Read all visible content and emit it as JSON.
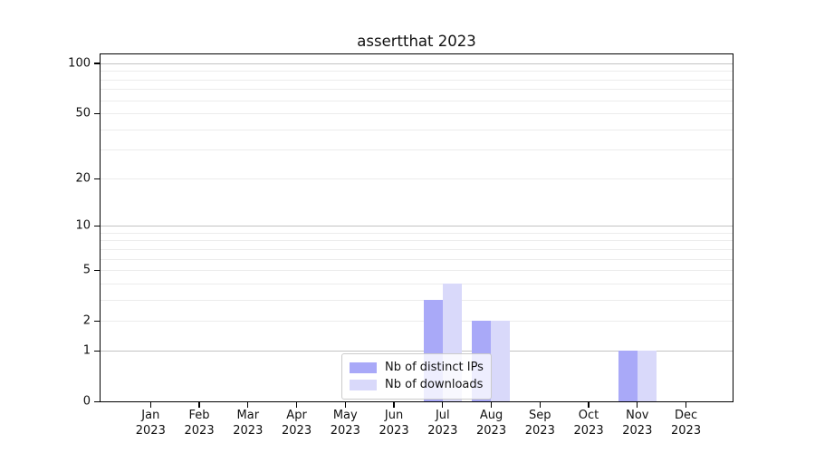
{
  "chart_data": {
    "type": "bar",
    "title": "assertthat 2023",
    "x_categories": [
      "Jan",
      "Feb",
      "Mar",
      "Apr",
      "May",
      "Jun",
      "Jul",
      "Aug",
      "Sep",
      "Oct",
      "Nov",
      "Dec"
    ],
    "x_year": "2023",
    "series": [
      {
        "name": "Nb of distinct IPs",
        "color": "#a9a9f8",
        "values": [
          0,
          0,
          0,
          0,
          0,
          0,
          3,
          2,
          0,
          0,
          1,
          0
        ]
      },
      {
        "name": "Nb of downloads",
        "color": "#d9d9fa",
        "values": [
          0,
          0,
          0,
          0,
          0,
          0,
          4,
          2,
          0,
          0,
          1,
          0
        ]
      }
    ],
    "y_ticks": [
      100,
      50,
      20,
      10,
      5,
      2,
      1,
      0
    ],
    "y_minor_gridlines": [
      2,
      3,
      4,
      5,
      6,
      7,
      8,
      9,
      20,
      30,
      40,
      50,
      60,
      70,
      80,
      90
    ],
    "y_major_gridlines": [
      1,
      10,
      100
    ],
    "y_scale": "log10(1+v)",
    "ylim": [
      0,
      100
    ],
    "grid": true,
    "legend_position": "lower center"
  },
  "colors": {
    "bar_distinct_ips": "#a9a9f8",
    "bar_downloads": "#d9d9fa",
    "major_grid": "#c3c3c3",
    "minor_grid": "#ececec",
    "axis_spine": "#000000"
  }
}
